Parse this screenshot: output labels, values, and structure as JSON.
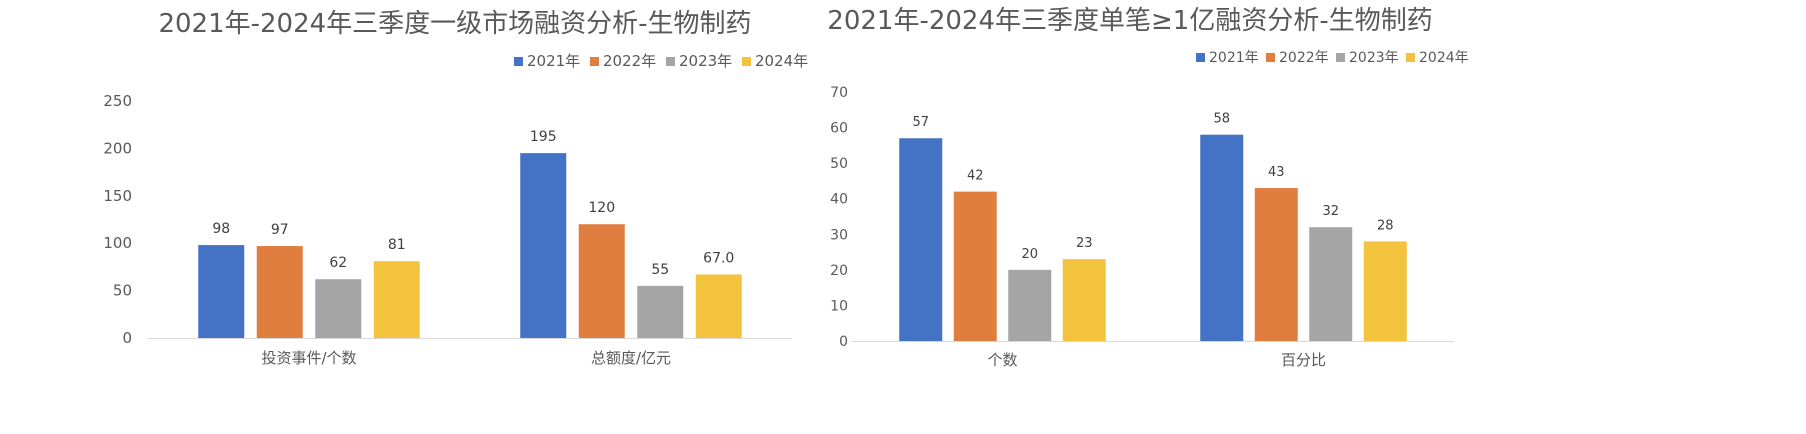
{
  "colors": {
    "2021": "#4472C4",
    "2022": "#ED7D31",
    "2023": "#A5A5A5",
    "2024": "#FFC000"
  },
  "chart_data": [
    {
      "type": "bar",
      "title": "2021年-2024年三季度一级市场融资分析-生物制药",
      "categories": [
        "投资事件/个数",
        "总额度/亿元"
      ],
      "series": [
        {
          "name": "2021年",
          "values": [
            98,
            195
          ],
          "labels": [
            "98",
            "195"
          ],
          "color": "#4472C4"
        },
        {
          "name": "2022年",
          "values": [
            97,
            120
          ],
          "labels": [
            "97",
            "120"
          ],
          "color": "#E07E3F"
        },
        {
          "name": "2023年",
          "values": [
            62,
            55
          ],
          "labels": [
            "62",
            "55"
          ],
          "color": "#A5A5A5"
        },
        {
          "name": "2024年",
          "values": [
            81,
            67.0
          ],
          "labels": [
            "81",
            "67.0"
          ],
          "color": "#F4C33D"
        }
      ],
      "yticks": [
        "0",
        "50",
        "100",
        "150",
        "200",
        "250"
      ],
      "ylim": [
        0,
        250
      ],
      "grid": false,
      "legend": "top-right"
    },
    {
      "type": "bar",
      "title": "2021年-2024年三季度单笔≥1亿融资分析-生物制药",
      "categories": [
        "个数",
        "百分比"
      ],
      "series": [
        {
          "name": "2021年",
          "values": [
            57,
            58
          ],
          "labels": [
            "57",
            "58"
          ],
          "color": "#4472C4"
        },
        {
          "name": "2022年",
          "values": [
            42,
            43
          ],
          "labels": [
            "42",
            "43"
          ],
          "color": "#E07E3F"
        },
        {
          "name": "2023年",
          "values": [
            20,
            32
          ],
          "labels": [
            "20",
            "32"
          ],
          "color": "#A5A5A5"
        },
        {
          "name": "2024年",
          "values": [
            23,
            28
          ],
          "labels": [
            "23",
            "28"
          ],
          "color": "#F4C33D"
        }
      ],
      "yticks": [
        "0",
        "10",
        "20",
        "30",
        "40",
        "50",
        "60",
        "70"
      ],
      "ylim": [
        0,
        70
      ],
      "grid": false,
      "legend": "top-right"
    }
  ]
}
